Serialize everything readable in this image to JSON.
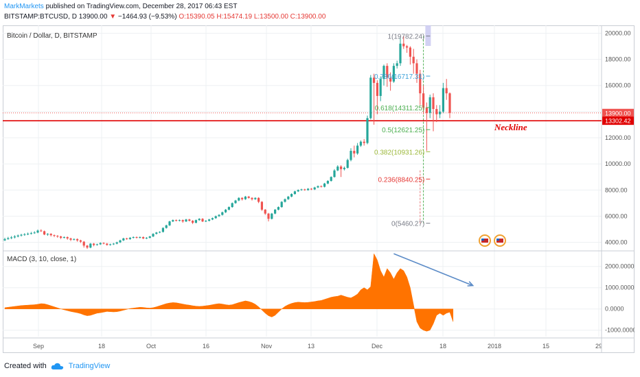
{
  "header": {
    "author": "MarkMarkets",
    "published_text": "published on TradingView.com, December 28, 2017 06:43 EST",
    "symbol": "BITSTAMP:BTCUSD, D",
    "last": "13900.00",
    "change": "−1464.93 (−9.53%)",
    "ohlc_text": "O:15390.05 H:15474.19 L:13500.00 C:13900.00"
  },
  "footer": {
    "created_with": "Created with",
    "brand": "TradingView"
  },
  "colors": {
    "up": "#26a69a",
    "down": "#ef5350",
    "macd_fill": "#ff7300",
    "neckline": "#e00000",
    "arrow": "#5b8bc7",
    "grid": "#eef0f3"
  },
  "chart_data": [
    {
      "type": "candlestick",
      "title": "Bitcoin / Dollar, D, BITSTAMP",
      "ylim": [
        3400,
        20600
      ],
      "y_ticks": [
        "20000.00",
        "18000.00",
        "16000.00",
        "14000.00",
        "12000.00",
        "10000.00",
        "8000.00",
        "6000.00",
        "4000.00"
      ],
      "x_ticks": [
        "Sep",
        "18",
        "Oct",
        "16",
        "Nov",
        "13",
        "Dec",
        "18",
        "2018",
        "15",
        "29"
      ],
      "price_labels": [
        "13900.00",
        "13302.42"
      ],
      "neckline": {
        "label": "Neckline",
        "value": 13302.42
      },
      "current_price": 13900,
      "fibonacci": [
        {
          "label": "1(19782.24)",
          "value": 19782.24,
          "color": "#787b86"
        },
        {
          "label": "0.786(16717.31)",
          "value": 16717.31,
          "color": "#3aa0d8"
        },
        {
          "label": "0.618(14311.25)",
          "value": 14311.25,
          "color": "#4caf50"
        },
        {
          "label": "0.5(12621.25)",
          "value": 12621.25,
          "color": "#4caf50"
        },
        {
          "label": "0.382(10931.26)",
          "value": 10931.26,
          "color": "#9cb83a"
        },
        {
          "label": "0.236(8840.25)",
          "value": 8840.25,
          "color": "#e53935"
        },
        {
          "label": "0(5460.27)",
          "value": 5460.27,
          "color": "#787b86"
        }
      ],
      "candles": [
        {
          "o": 4150,
          "c": 4250,
          "h": 4350,
          "l": 4100
        },
        {
          "o": 4250,
          "c": 4320,
          "h": 4420,
          "l": 4200
        },
        {
          "o": 4320,
          "c": 4380,
          "h": 4480,
          "l": 4250
        },
        {
          "o": 4380,
          "c": 4450,
          "h": 4550,
          "l": 4300
        },
        {
          "o": 4450,
          "c": 4520,
          "h": 4600,
          "l": 4380
        },
        {
          "o": 4520,
          "c": 4580,
          "h": 4650,
          "l": 4450
        },
        {
          "o": 4580,
          "c": 4620,
          "h": 4700,
          "l": 4500
        },
        {
          "o": 4620,
          "c": 4660,
          "h": 4750,
          "l": 4550
        },
        {
          "o": 4660,
          "c": 4700,
          "h": 4800,
          "l": 4600
        },
        {
          "o": 4700,
          "c": 4750,
          "h": 4850,
          "l": 4650
        },
        {
          "o": 4750,
          "c": 4900,
          "h": 4980,
          "l": 4700
        },
        {
          "o": 4900,
          "c": 4850,
          "h": 5000,
          "l": 4800
        },
        {
          "o": 4850,
          "c": 4600,
          "h": 4900,
          "l": 4550
        },
        {
          "o": 4600,
          "c": 4650,
          "h": 4700,
          "l": 4500
        },
        {
          "o": 4650,
          "c": 4550,
          "h": 4700,
          "l": 4450
        },
        {
          "o": 4550,
          "c": 4500,
          "h": 4600,
          "l": 4400
        },
        {
          "o": 4500,
          "c": 4450,
          "h": 4550,
          "l": 4350
        },
        {
          "o": 4450,
          "c": 4350,
          "h": 4500,
          "l": 4250
        },
        {
          "o": 4350,
          "c": 4400,
          "h": 4450,
          "l": 4300
        },
        {
          "o": 4400,
          "c": 4300,
          "h": 4450,
          "l": 4200
        },
        {
          "o": 4300,
          "c": 4200,
          "h": 4350,
          "l": 4100
        },
        {
          "o": 4200,
          "c": 4250,
          "h": 4300,
          "l": 4150
        },
        {
          "o": 4250,
          "c": 4150,
          "h": 4300,
          "l": 4050
        },
        {
          "o": 4150,
          "c": 4050,
          "h": 4200,
          "l": 3950
        },
        {
          "o": 4050,
          "c": 3750,
          "h": 4100,
          "l": 3600
        },
        {
          "o": 3750,
          "c": 3600,
          "h": 3800,
          "l": 3500
        },
        {
          "o": 3600,
          "c": 3900,
          "h": 3950,
          "l": 3550
        },
        {
          "o": 3900,
          "c": 3800,
          "h": 3950,
          "l": 3700
        },
        {
          "o": 3800,
          "c": 3850,
          "h": 3900,
          "l": 3750
        },
        {
          "o": 3850,
          "c": 3950,
          "h": 4000,
          "l": 3800
        },
        {
          "o": 3950,
          "c": 3900,
          "h": 4000,
          "l": 3850
        },
        {
          "o": 3900,
          "c": 3800,
          "h": 3950,
          "l": 3750
        },
        {
          "o": 3800,
          "c": 3850,
          "h": 3900,
          "l": 3750
        },
        {
          "o": 3850,
          "c": 3900,
          "h": 3950,
          "l": 3800
        },
        {
          "o": 3900,
          "c": 4000,
          "h": 4050,
          "l": 3850
        },
        {
          "o": 4000,
          "c": 4150,
          "h": 4200,
          "l": 3950
        },
        {
          "o": 4150,
          "c": 4300,
          "h": 4350,
          "l": 4100
        },
        {
          "o": 4300,
          "c": 4250,
          "h": 4350,
          "l": 4200
        },
        {
          "o": 4250,
          "c": 4350,
          "h": 4400,
          "l": 4200
        },
        {
          "o": 4350,
          "c": 4400,
          "h": 4450,
          "l": 4300
        },
        {
          "o": 4400,
          "c": 4350,
          "h": 4450,
          "l": 4300
        },
        {
          "o": 4350,
          "c": 4400,
          "h": 4450,
          "l": 4300
        },
        {
          "o": 4400,
          "c": 4300,
          "h": 4450,
          "l": 4250
        },
        {
          "o": 4300,
          "c": 4350,
          "h": 4400,
          "l": 4250
        },
        {
          "o": 4350,
          "c": 4450,
          "h": 4500,
          "l": 4300
        },
        {
          "o": 4450,
          "c": 4650,
          "h": 4700,
          "l": 4400
        },
        {
          "o": 4650,
          "c": 4750,
          "h": 4800,
          "l": 4600
        },
        {
          "o": 4750,
          "c": 4800,
          "h": 4850,
          "l": 4700
        },
        {
          "o": 4800,
          "c": 5100,
          "h": 5150,
          "l": 4750
        },
        {
          "o": 5100,
          "c": 5300,
          "h": 5350,
          "l": 5050
        },
        {
          "o": 5300,
          "c": 5600,
          "h": 5650,
          "l": 5250
        },
        {
          "o": 5600,
          "c": 5700,
          "h": 5750,
          "l": 5550
        },
        {
          "o": 5700,
          "c": 5650,
          "h": 5750,
          "l": 5600
        },
        {
          "o": 5650,
          "c": 5700,
          "h": 5750,
          "l": 5600
        },
        {
          "o": 5700,
          "c": 5600,
          "h": 5750,
          "l": 5500
        },
        {
          "o": 5600,
          "c": 5750,
          "h": 5800,
          "l": 5550
        },
        {
          "o": 5750,
          "c": 5650,
          "h": 5800,
          "l": 5600
        },
        {
          "o": 5650,
          "c": 5500,
          "h": 5700,
          "l": 5400
        },
        {
          "o": 5500,
          "c": 5700,
          "h": 5750,
          "l": 5450
        },
        {
          "o": 5700,
          "c": 5800,
          "h": 5850,
          "l": 5650
        },
        {
          "o": 5800,
          "c": 5600,
          "h": 5850,
          "l": 5550
        },
        {
          "o": 5600,
          "c": 5650,
          "h": 5700,
          "l": 5550
        },
        {
          "o": 5650,
          "c": 5750,
          "h": 5800,
          "l": 5600
        },
        {
          "o": 5750,
          "c": 5850,
          "h": 5900,
          "l": 5700
        },
        {
          "o": 5850,
          "c": 6000,
          "h": 6050,
          "l": 5800
        },
        {
          "o": 6000,
          "c": 6100,
          "h": 6150,
          "l": 5950
        },
        {
          "o": 6100,
          "c": 6300,
          "h": 6350,
          "l": 6050
        },
        {
          "o": 6300,
          "c": 6500,
          "h": 6550,
          "l": 6250
        },
        {
          "o": 6500,
          "c": 6700,
          "h": 6750,
          "l": 6450
        },
        {
          "o": 6700,
          "c": 7000,
          "h": 7050,
          "l": 6650
        },
        {
          "o": 7000,
          "c": 7200,
          "h": 7250,
          "l": 6950
        },
        {
          "o": 7200,
          "c": 7400,
          "h": 7450,
          "l": 7150
        },
        {
          "o": 7400,
          "c": 7300,
          "h": 7450,
          "l": 7200
        },
        {
          "o": 7300,
          "c": 7500,
          "h": 7550,
          "l": 7250
        },
        {
          "o": 7500,
          "c": 7400,
          "h": 7550,
          "l": 7350
        },
        {
          "o": 7400,
          "c": 7300,
          "h": 7450,
          "l": 7200
        },
        {
          "o": 7300,
          "c": 7400,
          "h": 7450,
          "l": 7250
        },
        {
          "o": 7400,
          "c": 7100,
          "h": 7450,
          "l": 7000
        },
        {
          "o": 7100,
          "c": 6500,
          "h": 7150,
          "l": 6400
        },
        {
          "o": 6500,
          "c": 6200,
          "h": 6550,
          "l": 6100
        },
        {
          "o": 6200,
          "c": 5800,
          "h": 6250,
          "l": 5600
        },
        {
          "o": 5800,
          "c": 6200,
          "h": 6250,
          "l": 5750
        },
        {
          "o": 6200,
          "c": 6500,
          "h": 6550,
          "l": 6150
        },
        {
          "o": 6500,
          "c": 6700,
          "h": 6750,
          "l": 6450
        },
        {
          "o": 6700,
          "c": 7100,
          "h": 7150,
          "l": 6650
        },
        {
          "o": 7100,
          "c": 7300,
          "h": 7350,
          "l": 7050
        },
        {
          "o": 7300,
          "c": 7500,
          "h": 7550,
          "l": 7250
        },
        {
          "o": 7500,
          "c": 7700,
          "h": 7750,
          "l": 7450
        },
        {
          "o": 7700,
          "c": 7900,
          "h": 7950,
          "l": 7650
        },
        {
          "o": 7900,
          "c": 8000,
          "h": 8050,
          "l": 7850
        },
        {
          "o": 8000,
          "c": 8050,
          "h": 8100,
          "l": 7950
        },
        {
          "o": 8050,
          "c": 8000,
          "h": 8100,
          "l": 7950
        },
        {
          "o": 8000,
          "c": 8100,
          "h": 8150,
          "l": 7950
        },
        {
          "o": 8100,
          "c": 8050,
          "h": 8150,
          "l": 8000
        },
        {
          "o": 8050,
          "c": 8200,
          "h": 8250,
          "l": 8000
        },
        {
          "o": 8200,
          "c": 8300,
          "h": 8350,
          "l": 8150
        },
        {
          "o": 8300,
          "c": 8250,
          "h": 8350,
          "l": 8200
        },
        {
          "o": 8250,
          "c": 8500,
          "h": 8550,
          "l": 8200
        },
        {
          "o": 8500,
          "c": 8700,
          "h": 8750,
          "l": 8450
        },
        {
          "o": 8700,
          "c": 9000,
          "h": 9050,
          "l": 8650
        },
        {
          "o": 9000,
          "c": 9500,
          "h": 9600,
          "l": 8950
        },
        {
          "o": 9500,
          "c": 9800,
          "h": 9900,
          "l": 9450
        },
        {
          "o": 9800,
          "c": 9600,
          "h": 9900,
          "l": 9000
        },
        {
          "o": 9600,
          "c": 9700,
          "h": 9800,
          "l": 9500
        },
        {
          "o": 9700,
          "c": 10300,
          "h": 10400,
          "l": 9650
        },
        {
          "o": 10300,
          "c": 11000,
          "h": 11200,
          "l": 10200
        },
        {
          "o": 11000,
          "c": 10800,
          "h": 11400,
          "l": 10500
        },
        {
          "o": 10800,
          "c": 11400,
          "h": 11600,
          "l": 10700
        },
        {
          "o": 11400,
          "c": 11700,
          "h": 11800,
          "l": 11300
        },
        {
          "o": 11700,
          "c": 11600,
          "h": 11900,
          "l": 11400
        },
        {
          "o": 11600,
          "c": 13500,
          "h": 13700,
          "l": 11500
        },
        {
          "o": 13500,
          "c": 16600,
          "h": 16800,
          "l": 13400
        },
        {
          "o": 16600,
          "c": 16200,
          "h": 16900,
          "l": 13000
        },
        {
          "o": 16200,
          "c": 15200,
          "h": 16400,
          "l": 13800
        },
        {
          "o": 15200,
          "c": 16500,
          "h": 16700,
          "l": 14800
        },
        {
          "o": 16500,
          "c": 17500,
          "h": 17600,
          "l": 16000
        },
        {
          "o": 17500,
          "c": 16600,
          "h": 17700,
          "l": 15900
        },
        {
          "o": 16600,
          "c": 16300,
          "h": 17000,
          "l": 15600
        },
        {
          "o": 16300,
          "c": 17500,
          "h": 17700,
          "l": 16200
        },
        {
          "o": 17500,
          "c": 17700,
          "h": 17900,
          "l": 17300
        },
        {
          "o": 17700,
          "c": 19200,
          "h": 19700,
          "l": 17500
        },
        {
          "o": 19200,
          "c": 19000,
          "h": 19782,
          "l": 18800
        },
        {
          "o": 19000,
          "c": 18900,
          "h": 19100,
          "l": 18500
        },
        {
          "o": 18900,
          "c": 18200,
          "h": 19000,
          "l": 17600
        },
        {
          "o": 18200,
          "c": 17700,
          "h": 18800,
          "l": 16900
        },
        {
          "o": 17700,
          "c": 16900,
          "h": 18000,
          "l": 16200
        },
        {
          "o": 16900,
          "c": 15400,
          "h": 17200,
          "l": 14500
        },
        {
          "o": 15400,
          "c": 14300,
          "h": 16000,
          "l": 13800
        },
        {
          "o": 14300,
          "c": 13900,
          "h": 14700,
          "l": 11000
        },
        {
          "o": 13900,
          "c": 15100,
          "h": 15300,
          "l": 13500
        },
        {
          "o": 15100,
          "c": 14200,
          "h": 15400,
          "l": 12500
        },
        {
          "o": 14200,
          "c": 13800,
          "h": 14500,
          "l": 13200
        },
        {
          "o": 13800,
          "c": 14000,
          "h": 14500,
          "l": 13500
        },
        {
          "o": 14000,
          "c": 15800,
          "h": 16200,
          "l": 13900
        },
        {
          "o": 15800,
          "c": 15400,
          "h": 16500,
          "l": 14900
        },
        {
          "o": 15400,
          "c": 13900,
          "h": 15474,
          "l": 13500
        }
      ]
    },
    {
      "type": "area",
      "title": "MACD (3, 10, close, 1)",
      "ylim": [
        -1300,
        2700
      ],
      "y_ticks": [
        "2000.0000",
        "1000.0000",
        "0.0000",
        "-1000.0000"
      ],
      "values": [
        60,
        80,
        100,
        120,
        140,
        160,
        170,
        180,
        190,
        200,
        220,
        250,
        240,
        200,
        150,
        100,
        50,
        0,
        -40,
        -80,
        -120,
        -150,
        -180,
        -220,
        -280,
        -320,
        -300,
        -250,
        -200,
        -180,
        -150,
        -120,
        -130,
        -140,
        -130,
        -100,
        -60,
        -20,
        20,
        40,
        60,
        80,
        70,
        50,
        40,
        60,
        100,
        150,
        200,
        250,
        280,
        300,
        290,
        260,
        230,
        200,
        180,
        150,
        130,
        120,
        130,
        150,
        170,
        200,
        230,
        250,
        230,
        200,
        180,
        200,
        250,
        300,
        340,
        380,
        350,
        300,
        220,
        100,
        -50,
        -200,
        -320,
        -380,
        -300,
        -150,
        0,
        120,
        200,
        260,
        300,
        320,
        310,
        300,
        310,
        330,
        350,
        380,
        400,
        450,
        500,
        550,
        580,
        600,
        650,
        600,
        550,
        520,
        600,
        700,
        900,
        1000,
        900,
        1050,
        2600,
        2300,
        1800,
        1500,
        1900,
        1700,
        1400,
        1700,
        1900,
        1800,
        1500,
        1000,
        200,
        -600,
        -900,
        -1000,
        -1050,
        -1000,
        -700,
        -300,
        -200,
        -300,
        -200,
        -150,
        -600
      ]
    }
  ]
}
